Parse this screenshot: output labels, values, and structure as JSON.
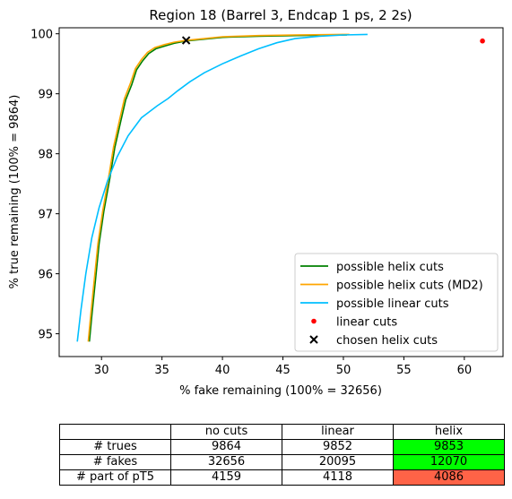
{
  "chart_data": {
    "type": "line",
    "title": "Region 18 (Barrel 3, Endcap 1 ps, 2 2s)",
    "xlabel": "% fake remaining (100% = 32656)",
    "ylabel": "% true remaining (100% = 9864)",
    "xlim": [
      26.5,
      63.2
    ],
    "ylim": [
      94.62,
      100.1
    ],
    "xticks": [
      30,
      35,
      40,
      45,
      50,
      55,
      60
    ],
    "yticks": [
      95,
      96,
      97,
      98,
      99,
      100
    ],
    "xtick_labels": [
      "30",
      "35",
      "40",
      "45",
      "50",
      "55",
      "60"
    ],
    "ytick_labels": [
      "95",
      "96",
      "97",
      "98",
      "99",
      "100"
    ],
    "grid": false,
    "legend_position": "lower right",
    "series": [
      {
        "name": "possible helix cuts",
        "color": "#008000",
        "style": "line",
        "points": [
          [
            29.0,
            94.87
          ],
          [
            29.2,
            95.3
          ],
          [
            29.5,
            95.9
          ],
          [
            29.8,
            96.5
          ],
          [
            30.2,
            97.05
          ],
          [
            30.7,
            97.6
          ],
          [
            31.1,
            98.1
          ],
          [
            31.6,
            98.55
          ],
          [
            32.0,
            98.9
          ],
          [
            32.5,
            99.15
          ],
          [
            32.9,
            99.4
          ],
          [
            33.4,
            99.55
          ],
          [
            33.9,
            99.67
          ],
          [
            34.5,
            99.75
          ],
          [
            35.3,
            99.8
          ],
          [
            36.0,
            99.84
          ],
          [
            37.0,
            99.88
          ],
          [
            38.5,
            99.91
          ],
          [
            40.0,
            99.94
          ],
          [
            43.0,
            99.96
          ],
          [
            46.0,
            99.97
          ],
          [
            50.3,
            99.98
          ]
        ]
      },
      {
        "name": "possible helix cuts (MD2)",
        "color": "#ffa500",
        "style": "line",
        "points": [
          [
            28.9,
            94.87
          ],
          [
            29.1,
            95.3
          ],
          [
            29.4,
            95.9
          ],
          [
            29.7,
            96.5
          ],
          [
            30.1,
            97.05
          ],
          [
            30.6,
            97.62
          ],
          [
            31.0,
            98.12
          ],
          [
            31.5,
            98.57
          ],
          [
            31.9,
            98.92
          ],
          [
            32.4,
            99.18
          ],
          [
            32.8,
            99.42
          ],
          [
            33.3,
            99.57
          ],
          [
            33.8,
            99.69
          ],
          [
            34.4,
            99.77
          ],
          [
            35.2,
            99.82
          ],
          [
            36.0,
            99.86
          ],
          [
            37.0,
            99.89
          ],
          [
            38.5,
            99.92
          ],
          [
            40.0,
            99.95
          ],
          [
            43.0,
            99.97
          ],
          [
            46.0,
            99.98
          ],
          [
            50.5,
            99.99
          ]
        ]
      },
      {
        "name": "possible linear cuts",
        "color": "#00bfff",
        "style": "line",
        "points": [
          [
            28.0,
            94.87
          ],
          [
            28.3,
            95.4
          ],
          [
            28.7,
            96.0
          ],
          [
            29.2,
            96.6
          ],
          [
            29.8,
            97.1
          ],
          [
            30.5,
            97.55
          ],
          [
            31.3,
            97.95
          ],
          [
            32.2,
            98.3
          ],
          [
            33.3,
            98.6
          ],
          [
            34.6,
            98.8
          ],
          [
            35.5,
            98.92
          ],
          [
            36.3,
            99.05
          ],
          [
            37.3,
            99.2
          ],
          [
            38.5,
            99.35
          ],
          [
            40.0,
            99.5
          ],
          [
            41.5,
            99.63
          ],
          [
            43.0,
            99.75
          ],
          [
            44.5,
            99.85
          ],
          [
            46.0,
            99.92
          ],
          [
            48.0,
            99.96
          ],
          [
            50.0,
            99.98
          ],
          [
            52.0,
            99.99
          ]
        ]
      },
      {
        "name": "linear cuts",
        "color": "#ff0000",
        "style": "marker-dot",
        "points": [
          [
            61.5,
            99.88
          ]
        ]
      },
      {
        "name": "chosen helix cuts",
        "color": "#000000",
        "style": "marker-x",
        "points": [
          [
            37.0,
            99.89
          ]
        ]
      }
    ]
  },
  "table": {
    "columns": [
      "",
      "no cuts",
      "linear",
      "helix"
    ],
    "rows": [
      {
        "label": "# trues",
        "values": [
          "9864",
          "9852",
          "9853"
        ],
        "helix_color": "#00ff00"
      },
      {
        "label": "# fakes",
        "values": [
          "32656",
          "20095",
          "12070"
        ],
        "helix_color": "#00ff00"
      },
      {
        "label": "# part of pT5",
        "values": [
          "4159",
          "4118",
          "4086"
        ],
        "helix_color": "#ff6347"
      }
    ]
  }
}
